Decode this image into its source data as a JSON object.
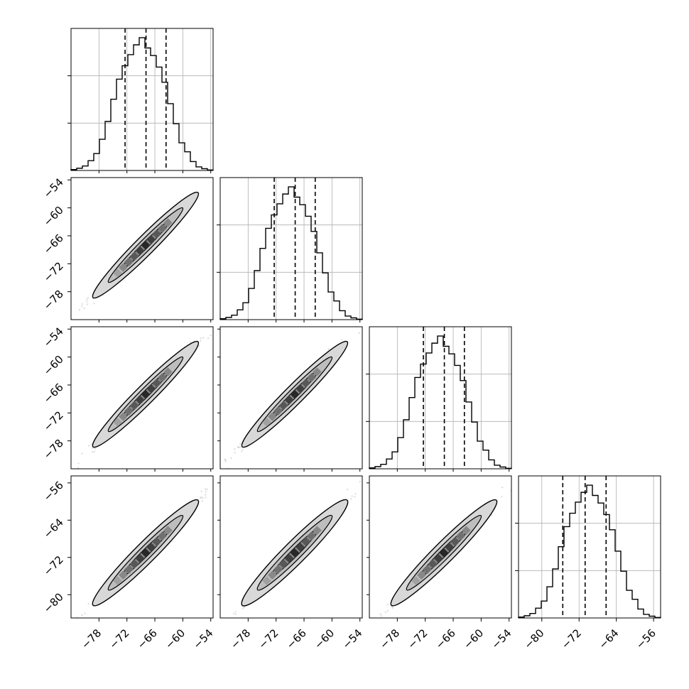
{
  "chart_data": {
    "type": "corner",
    "title": "",
    "parameters": [
      {
        "label": "",
        "range": [
          -84,
          -53.5
        ],
        "ticks": [
          -78,
          -72,
          -66,
          -60,
          -54
        ],
        "tick_labels": [
          "−78",
          "−72",
          "−66",
          "−60",
          "−54"
        ]
      },
      {
        "label": "",
        "range": [
          -84,
          -53.5
        ],
        "ticks": [
          -78,
          -72,
          -66,
          -60,
          -54
        ],
        "tick_labels": [
          "−78",
          "−72",
          "−66",
          "−60",
          "−54"
        ]
      },
      {
        "label": "",
        "range": [
          -84,
          -53.5
        ],
        "ticks": [
          -78,
          -72,
          -66,
          -60,
          -54
        ],
        "tick_labels": [
          "−78",
          "−72",
          "−66",
          "−60",
          "−54"
        ]
      },
      {
        "label": "",
        "range": [
          -85,
          -54.5
        ],
        "ticks": [
          -80,
          -72,
          -64,
          -56
        ],
        "tick_labels": [
          "−80",
          "−72",
          "−64",
          "−56"
        ]
      }
    ],
    "histograms": [
      {
        "bin_range": [
          -84,
          -53.5
        ],
        "counts": [
          2,
          5,
          10,
          22,
          38,
          70,
          110,
          160,
          205,
          235,
          260,
          282,
          298,
          275,
          258,
          232,
          198,
          150,
          105,
          62,
          42,
          20,
          8,
          4,
          1
        ],
        "quantiles": [
          -72.4,
          -67.9,
          -63.6
        ]
      },
      {
        "bin_range": [
          -84,
          -53.5
        ],
        "counts": [
          2,
          5,
          10,
          22,
          38,
          70,
          110,
          160,
          205,
          235,
          260,
          282,
          298,
          275,
          258,
          232,
          198,
          150,
          105,
          62,
          42,
          20,
          8,
          4,
          1
        ],
        "quantiles": [
          -72.4,
          -67.9,
          -63.6
        ]
      },
      {
        "bin_range": [
          -84,
          -53.5
        ],
        "counts": [
          2,
          5,
          10,
          22,
          38,
          70,
          110,
          160,
          205,
          235,
          260,
          282,
          298,
          275,
          258,
          232,
          198,
          150,
          105,
          62,
          42,
          20,
          8,
          4,
          1
        ],
        "quantiles": [
          -72.4,
          -67.9,
          -63.6
        ]
      },
      {
        "bin_range": [
          -85,
          -54.5
        ],
        "counts": [
          2,
          5,
          10,
          22,
          38,
          70,
          110,
          160,
          205,
          235,
          260,
          282,
          298,
          275,
          258,
          232,
          198,
          150,
          105,
          62,
          42,
          20,
          8,
          4,
          1
        ],
        "quantiles": [
          -75.5,
          -70.7,
          -66.2
        ]
      }
    ],
    "pairs": [
      {
        "row": 1,
        "col": 0,
        "center": [
          -68,
          -68
        ],
        "spread": 5.5,
        "width": 0.55
      },
      {
        "row": 2,
        "col": 0,
        "center": [
          -68,
          -68
        ],
        "spread": 5.5,
        "width": 0.55
      },
      {
        "row": 2,
        "col": 1,
        "center": [
          -68,
          -68
        ],
        "spread": 5.5,
        "width": 0.55
      },
      {
        "row": 3,
        "col": 0,
        "center": [
          -68,
          -71
        ],
        "spread": 5.5,
        "width": 0.6
      },
      {
        "row": 3,
        "col": 1,
        "center": [
          -68,
          -71
        ],
        "spread": 5.5,
        "width": 0.65
      },
      {
        "row": 3,
        "col": 2,
        "center": [
          -68,
          -71
        ],
        "spread": 5.5,
        "width": 0.6
      }
    ],
    "grid": true,
    "colors": {
      "line": "#000000",
      "grid": "#b0b0b0",
      "density": "#000000",
      "fill": "#d8d8d8"
    }
  }
}
